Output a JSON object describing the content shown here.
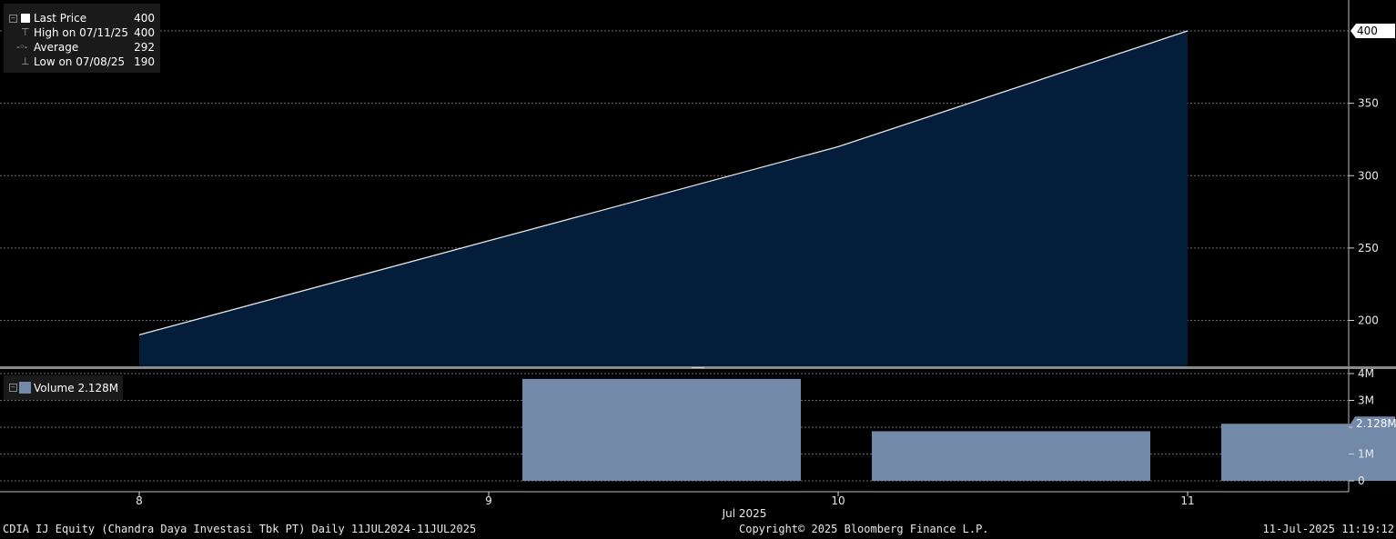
{
  "chart_data": [
    {
      "type": "area",
      "title": "",
      "x": [
        "8",
        "9",
        "10",
        "11"
      ],
      "series": [
        {
          "name": "Last Price",
          "values": [
            190,
            255,
            320,
            400
          ]
        }
      ],
      "yticks": [
        200,
        250,
        300,
        350,
        400
      ],
      "ylim": [
        170,
        420
      ],
      "grid": true,
      "axis_side": "right",
      "current_value_label": "400",
      "colors": {
        "line": "#e6e6e6",
        "fill": "#031d3a",
        "background": "#000000"
      }
    },
    {
      "type": "bar",
      "title": "",
      "categories": [
        "8",
        "9",
        "10",
        "11"
      ],
      "series": [
        {
          "name": "Volume",
          "values": [
            0,
            3800000,
            1850000,
            2128000
          ]
        }
      ],
      "ytick_labels": [
        "0",
        "1M",
        "2M",
        "3M",
        "4M"
      ],
      "yticks": [
        0,
        1000000,
        2000000,
        3000000,
        4000000
      ],
      "ylim": [
        0,
        4200000
      ],
      "grid": true,
      "axis_side": "right",
      "current_value_label": "2.128M",
      "colors": {
        "bar": "#7389aa"
      }
    }
  ],
  "legend_price": {
    "rows": [
      {
        "label": "Last Price",
        "value": "400"
      },
      {
        "label": "High on 07/11/25",
        "value": "400"
      },
      {
        "label": "Average",
        "value": "292"
      },
      {
        "label": "Low on 07/08/25",
        "value": "190"
      }
    ]
  },
  "legend_volume": {
    "label": "Volume 2.128M"
  },
  "x_axis": {
    "month_label": "Jul 2025"
  },
  "footer": {
    "security": "CDIA IJ Equity (Chandra Daya Investasi Tbk PT)  Daily 11JUL2024-11JUL2025",
    "copyright": "Copyright© 2025 Bloomberg Finance L.P.",
    "timestamp": "11-Jul-2025 11:19:12"
  }
}
